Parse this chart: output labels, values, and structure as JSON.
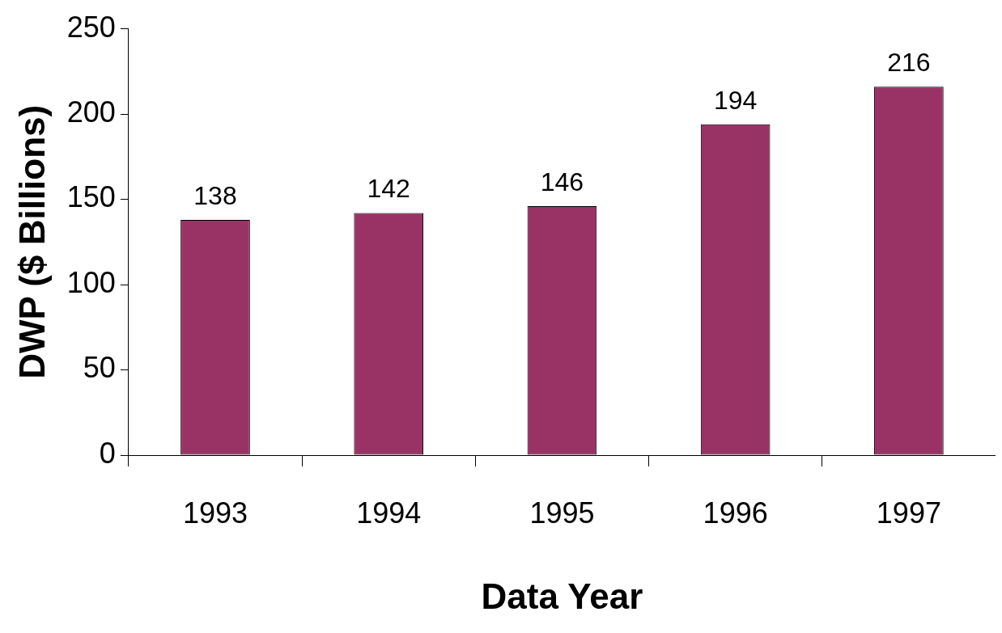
{
  "chart_data": {
    "type": "bar",
    "xlabel": "Data Year",
    "ylabel": "DWP ($ Billions)",
    "categories": [
      "1993",
      "1994",
      "1995",
      "1996",
      "1997"
    ],
    "values": [
      138,
      142,
      146,
      194,
      216
    ],
    "color": "#993366",
    "ylim": [
      0,
      250
    ],
    "yticks": [
      0,
      50,
      100,
      150,
      200,
      250
    ],
    "grid": false,
    "data_labels": true,
    "legend": false
  }
}
